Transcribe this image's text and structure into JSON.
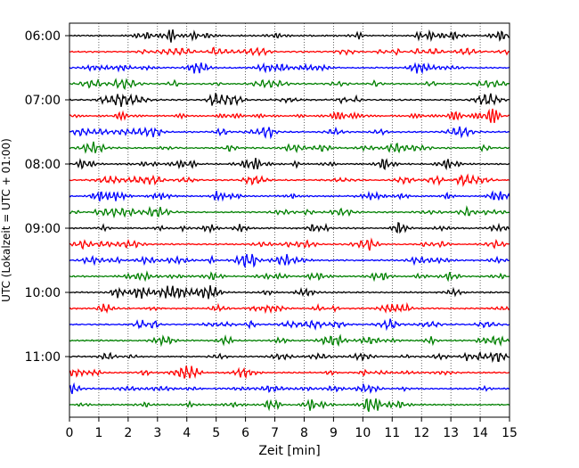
{
  "chart_data": {
    "type": "line",
    "title": "",
    "xlabel": "Zeit  [min]",
    "ylabel": "UTC (Lokalzeit = UTC + 01:00)",
    "xlim": [
      0,
      15
    ],
    "x_ticks": [
      "0",
      "1",
      "2",
      "3",
      "4",
      "5",
      "6",
      "7",
      "8",
      "9",
      "10",
      "11",
      "12",
      "13",
      "14",
      "15"
    ],
    "y_tick_labels": [
      "06:00",
      "07:00",
      "08:00",
      "09:00",
      "10:00",
      "11:00"
    ],
    "y_tick_trace_index": [
      0,
      4,
      8,
      12,
      16,
      20
    ],
    "trace_count": 24,
    "trace_minutes": 15,
    "grid": "vertical dotted",
    "colors": [
      "#000000",
      "#ff0000",
      "#0000ff",
      "#008000"
    ]
  }
}
